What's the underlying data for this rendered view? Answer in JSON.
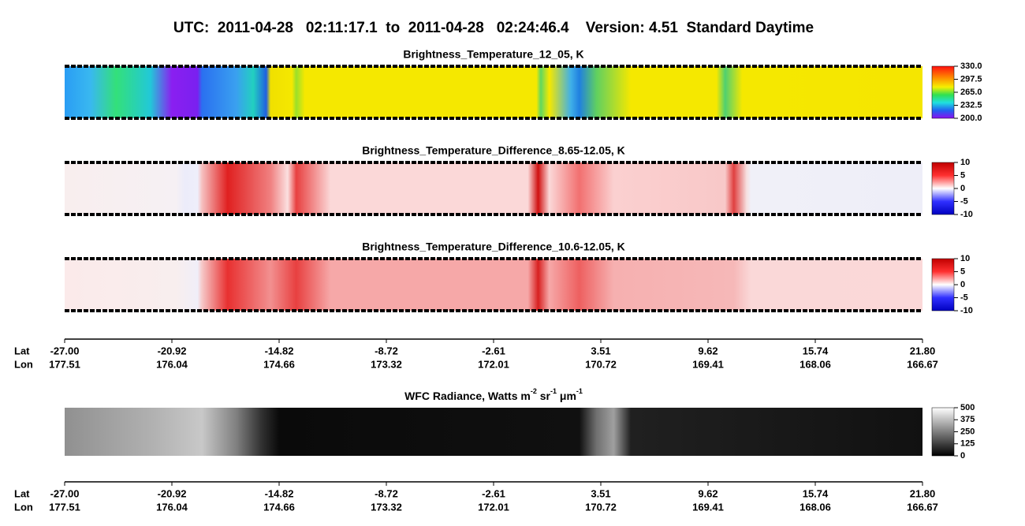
{
  "title": "UTC:  2011-04-28   02:11:17.1  to  2011-04-28   02:24:46.4    Version: 4.51  Standard Daytime",
  "panels": [
    {
      "title": "Brightness_Temperature_12_05, K",
      "colorbar_ticks": [
        "330.0",
        "297.5",
        "265.0",
        "232.5",
        "200.0"
      ]
    },
    {
      "title": "Brightness_Temperature_Difference_8.65-12.05, K",
      "colorbar_ticks": [
        "10",
        "5",
        "0",
        "-5",
        "-10"
      ]
    },
    {
      "title": "Brightness_Temperature_Difference_10.6-12.05, K",
      "colorbar_ticks": [
        "10",
        "5",
        "0",
        "-5",
        "-10"
      ]
    }
  ],
  "axis": {
    "lat_label": "Lat",
    "lon_label": "Lon",
    "lat": [
      "-27.00",
      "-20.92",
      "-14.82",
      "-8.72",
      "-2.61",
      "3.51",
      "9.62",
      "15.74",
      "21.80"
    ],
    "lon": [
      "177.51",
      "176.04",
      "174.66",
      "173.32",
      "172.01",
      "170.72",
      "169.41",
      "168.06",
      "166.67"
    ]
  },
  "wfc": {
    "title_parts": [
      "WFC Radiance, Watts m",
      "-2",
      " sr",
      "-1",
      " μm",
      "-1"
    ],
    "colorbar_ticks": [
      "500",
      "375",
      "250",
      "125",
      "0"
    ]
  },
  "axis2": {
    "lat_label": "Lat",
    "lon_label": "Lon",
    "lat": [
      "-27.00",
      "-20.92",
      "-14.82",
      "-8.72",
      "-2.61",
      "3.51",
      "9.62",
      "15.74",
      "21.80"
    ],
    "lon": [
      "177.51",
      "176.04",
      "174.66",
      "173.32",
      "172.01",
      "170.72",
      "169.41",
      "168.06",
      "166.67"
    ]
  }
}
